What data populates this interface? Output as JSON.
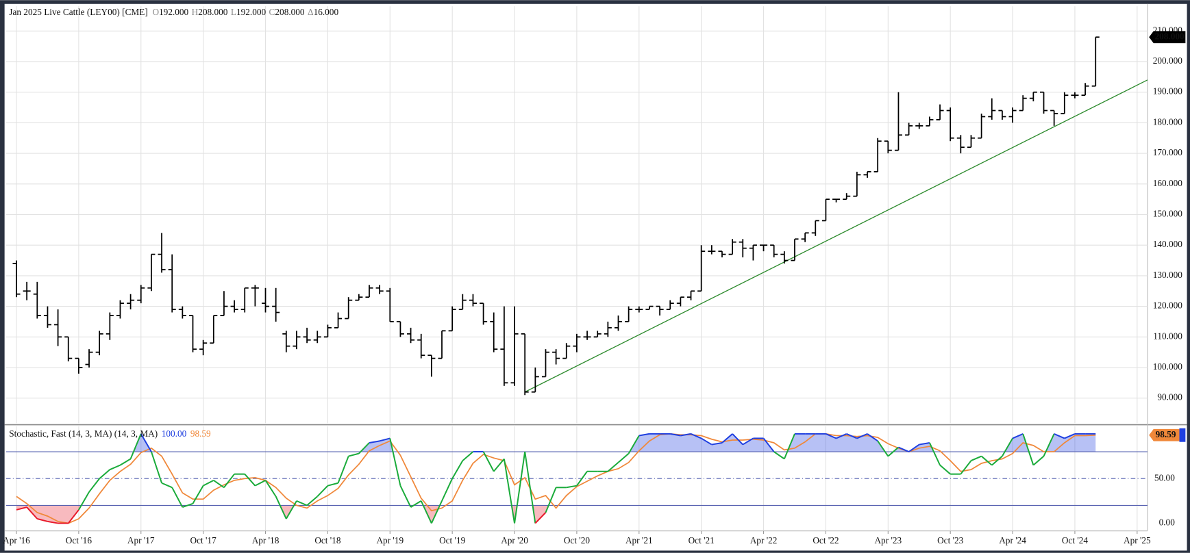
{
  "chart_data": {
    "type": "ohlc",
    "title": "Jan 2025 Live Cattle (LEY00) [CME]",
    "ohlc_readout": [
      {
        "key": "O",
        "value": "192.000"
      },
      {
        "key": "H",
        "value": "208.000"
      },
      {
        "key": "L",
        "value": "192.000"
      },
      {
        "key": "C",
        "value": "208.000"
      },
      {
        "key": "Δ",
        "value": "16.000"
      }
    ],
    "last_price_label": "208.000",
    "x": [
      "2016-04",
      "2016-05",
      "2016-06",
      "2016-07",
      "2016-08",
      "2016-09",
      "2016-10",
      "2016-11",
      "2016-12",
      "2017-01",
      "2017-02",
      "2017-03",
      "2017-04",
      "2017-05",
      "2017-06",
      "2017-07",
      "2017-08",
      "2017-09",
      "2017-10",
      "2017-11",
      "2017-12",
      "2018-01",
      "2018-02",
      "2018-03",
      "2018-04",
      "2018-05",
      "2018-06",
      "2018-07",
      "2018-08",
      "2018-09",
      "2018-10",
      "2018-11",
      "2018-12",
      "2019-01",
      "2019-02",
      "2019-03",
      "2019-04",
      "2019-05",
      "2019-06",
      "2019-07",
      "2019-08",
      "2019-09",
      "2019-10",
      "2019-11",
      "2019-12",
      "2020-01",
      "2020-02",
      "2020-03",
      "2020-04",
      "2020-05",
      "2020-06",
      "2020-07",
      "2020-08",
      "2020-09",
      "2020-10",
      "2020-11",
      "2020-12",
      "2021-01",
      "2021-02",
      "2021-03",
      "2021-04",
      "2021-05",
      "2021-06",
      "2021-07",
      "2021-08",
      "2021-09",
      "2021-10",
      "2021-11",
      "2021-12",
      "2022-01",
      "2022-02",
      "2022-03",
      "2022-04",
      "2022-05",
      "2022-06",
      "2022-07",
      "2022-08",
      "2022-09",
      "2022-10",
      "2022-11",
      "2022-12",
      "2023-01",
      "2023-02",
      "2023-03",
      "2023-04",
      "2023-05",
      "2023-06",
      "2023-07",
      "2023-08",
      "2023-09",
      "2023-10",
      "2023-11",
      "2023-12",
      "2024-01",
      "2024-02",
      "2024-03",
      "2024-04",
      "2024-05",
      "2024-06",
      "2024-07",
      "2024-08",
      "2024-09",
      "2024-10",
      "2024-11",
      "2024-12"
    ],
    "open": [
      134,
      125,
      124,
      117,
      114,
      110,
      103,
      101,
      105,
      111,
      117,
      121,
      122,
      126,
      137,
      132,
      119,
      117,
      106,
      108,
      117,
      120,
      119,
      126,
      121,
      120,
      111,
      107,
      110,
      109,
      110,
      113,
      116,
      122,
      123,
      126,
      125,
      115,
      111,
      109,
      104,
      103,
      112,
      119,
      122,
      121,
      115,
      106,
      95,
      111,
      92,
      97,
      105,
      103,
      107,
      110,
      110,
      111,
      113,
      115,
      119,
      119,
      120,
      119,
      121,
      123,
      125,
      138,
      138,
      137,
      141,
      139,
      140,
      140,
      137,
      135,
      142,
      144,
      148,
      155,
      155,
      156,
      163,
      164,
      174,
      171,
      176,
      179,
      179,
      181,
      184,
      175,
      172,
      175,
      182,
      184,
      182,
      184,
      188,
      190,
      184,
      183,
      189,
      189,
      192
    ],
    "high": [
      135,
      128,
      128,
      120,
      119,
      110,
      103,
      106,
      112,
      118,
      122,
      124,
      127,
      137,
      144,
      137,
      120,
      117,
      109,
      117,
      125,
      122,
      126,
      127,
      126,
      126,
      112,
      112,
      113,
      112,
      114,
      118,
      123,
      124,
      127,
      127,
      126,
      115,
      113,
      111,
      104,
      112,
      120,
      124,
      124,
      121,
      118,
      120,
      120,
      111,
      100,
      106,
      106,
      108,
      111,
      112,
      112,
      115,
      117,
      120,
      120,
      120,
      120,
      122,
      123,
      125,
      140,
      140,
      138,
      142,
      142,
      140,
      140,
      140,
      138,
      142,
      144,
      148,
      155,
      155,
      157,
      164,
      164,
      175,
      174,
      190,
      180,
      180,
      182,
      186,
      185,
      176,
      176,
      183,
      188,
      184,
      185,
      189,
      190,
      190,
      184,
      190,
      190,
      193,
      208
    ],
    "low": [
      123,
      122,
      116,
      113,
      107,
      102,
      98,
      100,
      104,
      109,
      116,
      119,
      121,
      125,
      131,
      118,
      116,
      105,
      104,
      108,
      117,
      118,
      118,
      120,
      118,
      115,
      105,
      106,
      108,
      108,
      110,
      113,
      116,
      122,
      123,
      124,
      115,
      110,
      108,
      103,
      97,
      103,
      112,
      119,
      120,
      114,
      105,
      94,
      94,
      91,
      92,
      97,
      101,
      103,
      105,
      109,
      110,
      110,
      112,
      115,
      118,
      119,
      117,
      119,
      120,
      122,
      125,
      137,
      136,
      137,
      136,
      135,
      138,
      136,
      134,
      135,
      141,
      143,
      148,
      154,
      155,
      156,
      162,
      164,
      170,
      171,
      176,
      178,
      179,
      181,
      174,
      170,
      172,
      175,
      181,
      181,
      180,
      184,
      187,
      183,
      179,
      183,
      188,
      189,
      192
    ],
    "close": [
      124,
      125,
      117,
      114,
      110,
      103,
      100,
      105,
      111,
      117,
      121,
      122,
      126,
      137,
      132,
      119,
      117,
      106,
      108,
      117,
      120,
      119,
      126,
      126,
      120,
      118,
      107,
      110,
      109,
      110,
      113,
      116,
      122,
      123,
      126,
      125,
      115,
      111,
      109,
      104,
      103,
      112,
      119,
      122,
      121,
      115,
      106,
      95,
      111,
      92,
      97,
      105,
      103,
      107,
      110,
      110,
      111,
      113,
      115,
      119,
      119,
      120,
      119,
      121,
      123,
      125,
      138,
      138,
      137,
      141,
      139,
      140,
      140,
      137,
      135,
      142,
      144,
      148,
      155,
      155,
      156,
      163,
      164,
      174,
      171,
      176,
      179,
      179,
      181,
      184,
      175,
      172,
      175,
      182,
      184,
      182,
      184,
      188,
      190,
      184,
      183,
      189,
      189,
      192,
      208
    ],
    "bar_color": "#000000",
    "xlim": [
      "2016-03",
      "2025-05"
    ],
    "xticks": [
      {
        "value": "2016-04",
        "label": "Apr '16"
      },
      {
        "value": "2016-10",
        "label": "Oct '16"
      },
      {
        "value": "2017-04",
        "label": "Apr '17"
      },
      {
        "value": "2017-10",
        "label": "Oct '17"
      },
      {
        "value": "2018-04",
        "label": "Apr '18"
      },
      {
        "value": "2018-10",
        "label": "Oct '18"
      },
      {
        "value": "2019-04",
        "label": "Apr '19"
      },
      {
        "value": "2019-10",
        "label": "Oct '19"
      },
      {
        "value": "2020-04",
        "label": "Apr '20"
      },
      {
        "value": "2020-10",
        "label": "Oct '20"
      },
      {
        "value": "2021-04",
        "label": "Apr '21"
      },
      {
        "value": "2021-10",
        "label": "Oct '21"
      },
      {
        "value": "2022-04",
        "label": "Apr '22"
      },
      {
        "value": "2022-10",
        "label": "Oct '22"
      },
      {
        "value": "2023-04",
        "label": "Apr '23"
      },
      {
        "value": "2023-10",
        "label": "Oct '23"
      },
      {
        "value": "2024-04",
        "label": "Apr '24"
      },
      {
        "value": "2024-10",
        "label": "Oct '24"
      },
      {
        "value": "2025-04",
        "label": "Apr '25"
      }
    ],
    "ylim": [
      81.8,
      218.1
    ],
    "yticks": [
      {
        "value": 90,
        "label": "90.000"
      },
      {
        "value": 100,
        "label": "100.000"
      },
      {
        "value": 110,
        "label": "110.000"
      },
      {
        "value": 120,
        "label": "120.000"
      },
      {
        "value": 130,
        "label": "130.000"
      },
      {
        "value": 140,
        "label": "140.000"
      },
      {
        "value": 150,
        "label": "150.000"
      },
      {
        "value": 160,
        "label": "160.000"
      },
      {
        "value": 170,
        "label": "170.000"
      },
      {
        "value": 180,
        "label": "180.000"
      },
      {
        "value": 190,
        "label": "190.000"
      },
      {
        "value": 200,
        "label": "200.000"
      },
      {
        "value": 210,
        "label": "210.000"
      }
    ],
    "grid": true,
    "trendline": {
      "x": [
        "2020-05",
        "2025-05"
      ],
      "y": [
        92,
        194
      ],
      "color": "#2e8b2e"
    },
    "stochastic": {
      "title": "Stochastic, Fast (14, 3, MA)  (14, 3, MA)",
      "k_label": "100.00",
      "d_label": "98.59",
      "badge": "98.59",
      "ylim": [
        -8.5,
        108.5
      ],
      "yticks": [
        {
          "value": 0,
          "label": "0.00"
        },
        {
          "value": 50,
          "label": "50.00"
        }
      ],
      "upper": 80,
      "mid": 50,
      "lower": 20,
      "k_color": "#1aab3a",
      "over_color": "#1f3fe0",
      "under_color": "#e81a2a",
      "d_color": "#f0883a",
      "k": [
        15,
        18,
        5,
        2,
        0,
        0,
        15,
        35,
        50,
        60,
        65,
        72,
        100,
        80,
        45,
        40,
        18,
        22,
        42,
        48,
        40,
        55,
        55,
        42,
        48,
        30,
        5,
        25,
        20,
        30,
        42,
        45,
        75,
        78,
        90,
        92,
        95,
        42,
        18,
        25,
        0,
        25,
        50,
        70,
        80,
        80,
        58,
        72,
        0,
        80,
        0,
        12,
        40,
        40,
        42,
        58,
        58,
        58,
        68,
        78,
        98,
        100,
        100,
        100,
        98,
        100,
        95,
        88,
        90,
        100,
        88,
        95,
        95,
        80,
        72,
        100,
        100,
        100,
        100,
        95,
        100,
        95,
        100,
        92,
        75,
        85,
        80,
        88,
        90,
        65,
        55,
        55,
        70,
        75,
        65,
        75,
        95,
        100,
        65,
        75,
        100,
        95,
        100,
        100,
        100
      ],
      "d": [
        30,
        22,
        12,
        8,
        2,
        0,
        5,
        17,
        33,
        48,
        58,
        66,
        79,
        84,
        75,
        55,
        34,
        27,
        27,
        37,
        43,
        48,
        50,
        51,
        48,
        40,
        28,
        20,
        17,
        25,
        31,
        39,
        54,
        66,
        81,
        87,
        92,
        76,
        52,
        28,
        14,
        17,
        25,
        48,
        67,
        77,
        73,
        70,
        43,
        51,
        27,
        31,
        17,
        31,
        41,
        47,
        53,
        58,
        61,
        68,
        81,
        92,
        99,
        100,
        99,
        99,
        98,
        94,
        91,
        93,
        93,
        94,
        93,
        90,
        82,
        84,
        91,
        100,
        100,
        98,
        98,
        97,
        98,
        96,
        89,
        84,
        80,
        84,
        86,
        81,
        70,
        58,
        60,
        67,
        70,
        72,
        78,
        90,
        87,
        80,
        80,
        90,
        98,
        98,
        98.59
      ]
    }
  }
}
